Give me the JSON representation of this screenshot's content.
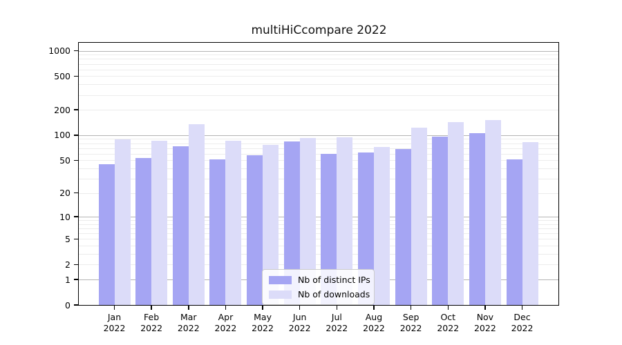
{
  "chart_data": {
    "type": "bar",
    "title": "multiHiCcompare 2022",
    "categories": [
      "Jan",
      "Feb",
      "Mar",
      "Apr",
      "May",
      "Jun",
      "Jul",
      "Aug",
      "Sep",
      "Oct",
      "Nov",
      "Dec"
    ],
    "x_tick_year": "2022",
    "series": [
      {
        "name": "Nb of distinct IPs",
        "color": "#a5a5f3",
        "values": [
          45,
          53,
          73,
          51,
          58,
          84,
          60,
          62,
          68,
          96,
          105,
          51
        ]
      },
      {
        "name": "Nb of downloads",
        "color": "#dcdcf9",
        "values": [
          89,
          85,
          135,
          86,
          76,
          92,
          94,
          72,
          123,
          143,
          152,
          82
        ]
      }
    ],
    "yscale": "log1p",
    "yticks": [
      0,
      1,
      2,
      5,
      10,
      20,
      50,
      100,
      200,
      500,
      1000
    ],
    "ylim": [
      0,
      1250
    ],
    "xlabel": "",
    "ylabel": "",
    "grid": true,
    "legend_position": "lower center"
  },
  "style": {
    "bar_color_ips": "#a5a5f3",
    "bar_color_downloads": "#dcdcf9",
    "major_gridline_color": "#b3b3b3",
    "minor_gridline_color": "#ececec",
    "spine_color": "#000000",
    "background_color": "#ffffff",
    "text_color": "#000000"
  }
}
